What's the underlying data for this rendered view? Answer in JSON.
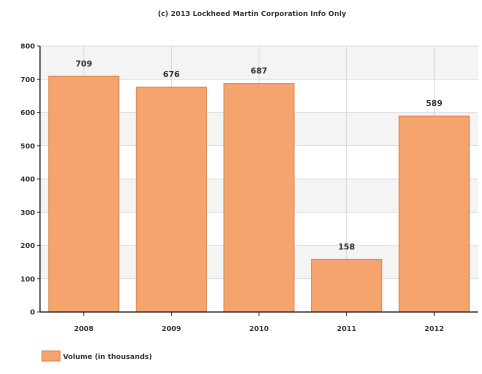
{
  "chart_data": {
    "type": "bar",
    "title": "(c) 2013 Lockheed Martin Corporation Info Only",
    "categories": [
      "2008",
      "2009",
      "2010",
      "2011",
      "2012"
    ],
    "series": [
      {
        "name": "Volume (in thousands)",
        "values": [
          709,
          676,
          687,
          158,
          589
        ]
      }
    ],
    "data_labels": [
      "709",
      "676",
      "687",
      "158",
      "589"
    ],
    "ylim": [
      0,
      800
    ],
    "yticks": [
      "0",
      "100",
      "200",
      "300",
      "400",
      "500",
      "600",
      "700",
      "800"
    ],
    "xlabel": "",
    "ylabel": "",
    "grid": true,
    "legend_position": "bottom-left",
    "colors": {
      "bar_fill": "#f4a46c",
      "bar_stroke": "#dd8a52",
      "band": "#f4f4f4",
      "grid": "#cccccc",
      "axis": "#222222"
    }
  }
}
